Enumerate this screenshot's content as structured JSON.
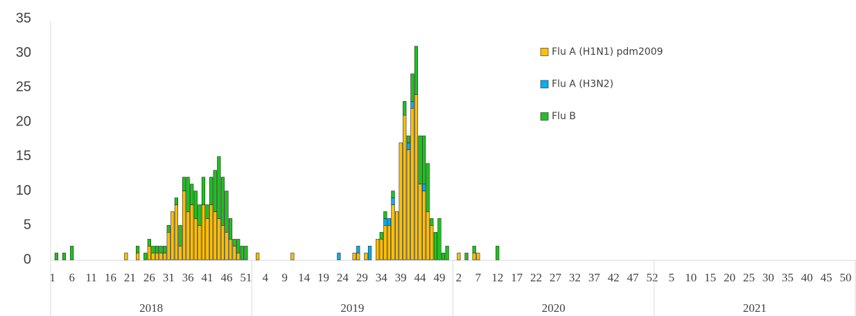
{
  "chart_data": {
    "type": "stacked_bar",
    "ylim": [
      0,
      35
    ],
    "yticks": [
      0,
      5,
      10,
      15,
      20,
      25,
      30,
      35
    ],
    "groups": [
      {
        "label": "2018",
        "weeks": 52
      },
      {
        "label": "2019",
        "weeks": 52
      },
      {
        "label": "2020",
        "weeks": 52
      },
      {
        "label": "2021",
        "weeks": 52
      }
    ],
    "categories": [
      "1",
      null,
      null,
      null,
      null,
      "6",
      null,
      null,
      null,
      null,
      "11",
      null,
      null,
      null,
      null,
      "16",
      null,
      null,
      null,
      null,
      "21",
      null,
      null,
      null,
      null,
      "26",
      null,
      null,
      null,
      null,
      "31",
      null,
      null,
      null,
      null,
      "36",
      null,
      null,
      null,
      null,
      "41",
      null,
      null,
      null,
      null,
      "46",
      null,
      null,
      null,
      null,
      "51",
      null,
      null,
      null,
      null,
      "4",
      null,
      null,
      null,
      null,
      "9",
      null,
      null,
      null,
      null,
      "14",
      null,
      null,
      null,
      null,
      "19",
      null,
      null,
      null,
      null,
      "24",
      null,
      null,
      null,
      null,
      "29",
      null,
      null,
      null,
      null,
      "34",
      null,
      null,
      null,
      null,
      "39",
      null,
      null,
      null,
      null,
      "44",
      null,
      null,
      null,
      null,
      "49",
      null,
      null,
      null,
      null,
      "2",
      null,
      null,
      null,
      null,
      "7",
      null,
      null,
      null,
      null,
      "12",
      null,
      null,
      null,
      null,
      "17",
      null,
      null,
      null,
      null,
      "22",
      null,
      null,
      null,
      null,
      "27",
      null,
      null,
      null,
      null,
      "32",
      null,
      null,
      null,
      null,
      "37",
      null,
      null,
      null,
      null,
      "42",
      null,
      null,
      null,
      null,
      "47",
      null,
      null,
      null,
      null,
      "52",
      null,
      null,
      null,
      null,
      "5",
      null,
      null,
      null,
      null,
      "10",
      null,
      null,
      null,
      null,
      "15",
      null,
      null,
      null,
      null,
      "20",
      null,
      null,
      null,
      null,
      "25",
      null,
      null,
      null,
      null,
      "30",
      null,
      null,
      null,
      null,
      "35",
      null,
      null,
      null,
      null,
      "40",
      null,
      null,
      null,
      null,
      "45",
      null,
      null,
      null,
      null,
      "50",
      null,
      null
    ],
    "series": [
      {
        "name": "Flu A (H1N1) pdm2009",
        "color": "#FFC000",
        "values": [
          0,
          0,
          0,
          0,
          0,
          0,
          0,
          0,
          0,
          0,
          0,
          0,
          0,
          0,
          0,
          0,
          0,
          0,
          0,
          1,
          0,
          0,
          1,
          0,
          0,
          2,
          1,
          1,
          1,
          1,
          4,
          7,
          8,
          2,
          10,
          7,
          8,
          6,
          5,
          8,
          6,
          8,
          7,
          6,
          5,
          4,
          3,
          2,
          1,
          0,
          0,
          0,
          0,
          1,
          0,
          0,
          0,
          0,
          0,
          0,
          0,
          0,
          1,
          0,
          0,
          0,
          0,
          0,
          0,
          0,
          0,
          0,
          0,
          0,
          0,
          0,
          0,
          0,
          1,
          1,
          0,
          1,
          0,
          0,
          3,
          3,
          5,
          5,
          8,
          7,
          17,
          21,
          16,
          22,
          24,
          11,
          10,
          7,
          5,
          0,
          0,
          0,
          0,
          0,
          0,
          1,
          0,
          0,
          0,
          1,
          1,
          0,
          0,
          0,
          0,
          0,
          0,
          0,
          0,
          0,
          0,
          0,
          0,
          0,
          0,
          0,
          0,
          0,
          0,
          0,
          0,
          0,
          0,
          0,
          0,
          0,
          0,
          0,
          0,
          0,
          0,
          0,
          0,
          0,
          0,
          0,
          0,
          0,
          0,
          0,
          0,
          0,
          0,
          0,
          0,
          0,
          0,
          0,
          0,
          0,
          0,
          0,
          0,
          0,
          0,
          0,
          0,
          0,
          0,
          0,
          0,
          0,
          0,
          0,
          0,
          0,
          0,
          0,
          0,
          0,
          0,
          0,
          0,
          0,
          0,
          0,
          0,
          0,
          0,
          0,
          0,
          0,
          0,
          0,
          0,
          0,
          0,
          0,
          0,
          0,
          0,
          0,
          0,
          0,
          0,
          0,
          0,
          0
        ]
      },
      {
        "name": "Flu A (H3N2)",
        "color": "#00B0F0",
        "values": [
          0,
          0,
          0,
          0,
          0,
          0,
          0,
          0,
          0,
          0,
          0,
          0,
          0,
          0,
          0,
          0,
          0,
          0,
          0,
          0,
          0,
          0,
          0,
          0,
          0,
          0,
          0,
          0,
          0,
          0,
          0,
          0,
          0,
          0,
          0,
          0,
          0,
          0,
          0,
          0,
          0,
          0,
          0,
          0,
          0,
          0,
          0,
          0,
          0,
          0,
          0,
          0,
          0,
          0,
          0,
          0,
          0,
          0,
          0,
          0,
          0,
          0,
          0,
          0,
          0,
          0,
          0,
          0,
          0,
          0,
          0,
          0,
          0,
          0,
          1,
          0,
          0,
          0,
          0,
          1,
          0,
          0,
          2,
          0,
          0,
          0,
          1,
          1,
          1,
          0,
          0,
          0,
          1,
          1,
          0,
          0,
          1,
          0,
          0,
          0,
          0,
          0,
          0,
          0,
          0,
          0,
          0,
          0,
          0,
          0,
          0,
          0,
          0,
          0,
          0,
          0,
          0,
          0,
          0,
          0,
          0,
          0,
          0,
          0,
          0,
          0,
          0,
          0,
          0,
          0,
          0,
          0,
          0,
          0,
          0,
          0,
          0,
          0,
          0,
          0,
          0,
          0,
          0,
          0,
          0,
          0,
          0,
          0,
          0,
          0,
          0,
          0,
          0,
          0,
          0,
          0,
          0,
          0,
          0,
          0,
          0,
          0,
          0,
          0,
          0,
          0,
          0,
          0,
          0,
          0,
          0,
          0,
          0,
          0,
          0,
          0,
          0,
          0,
          0,
          0,
          0,
          0,
          0,
          0,
          0,
          0,
          0,
          0,
          0,
          0,
          0,
          0,
          0,
          0,
          0,
          0,
          0,
          0,
          0,
          0,
          0,
          0,
          0,
          0,
          0,
          0,
          0,
          0
        ]
      },
      {
        "name": "Flu B",
        "color": "#1EC31E",
        "values": [
          0,
          1,
          0,
          1,
          0,
          2,
          0,
          0,
          0,
          0,
          0,
          0,
          0,
          0,
          0,
          0,
          0,
          0,
          0,
          0,
          0,
          0,
          1,
          0,
          1,
          1,
          1,
          1,
          1,
          1,
          1,
          0,
          1,
          3,
          2,
          5,
          3,
          4,
          3,
          4,
          2,
          4,
          6,
          9,
          7,
          6,
          3,
          1,
          2,
          2,
          2,
          0,
          0,
          0,
          0,
          0,
          0,
          0,
          0,
          0,
          0,
          0,
          0,
          0,
          0,
          0,
          0,
          0,
          0,
          0,
          0,
          0,
          0,
          0,
          0,
          0,
          0,
          0,
          0,
          0,
          0,
          0,
          0,
          0,
          0,
          1,
          1,
          0,
          1,
          0,
          0,
          2,
          1,
          4,
          7,
          7,
          7,
          7,
          1,
          4,
          6,
          1,
          2,
          0,
          0,
          0,
          0,
          1,
          0,
          1,
          0,
          0,
          0,
          0,
          0,
          2,
          0,
          0,
          0,
          0,
          0,
          0,
          0,
          0,
          0,
          0,
          0,
          0,
          0,
          0,
          0,
          0,
          0,
          0,
          0,
          0,
          0,
          0,
          0,
          0,
          0,
          0,
          0,
          0,
          0,
          0,
          0,
          0,
          0,
          0,
          0,
          0,
          0,
          0,
          0,
          0,
          0,
          0,
          0,
          0,
          0,
          0,
          0,
          0,
          0,
          0,
          0,
          0,
          0,
          0,
          0,
          0,
          0,
          0,
          0,
          0,
          0,
          0,
          0,
          0,
          0,
          0,
          0,
          0,
          0,
          0,
          0,
          0,
          0,
          0,
          0,
          0,
          0,
          0,
          0,
          0,
          0,
          0,
          0,
          0,
          0,
          0,
          0,
          0,
          0,
          0,
          0,
          0
        ]
      }
    ]
  }
}
